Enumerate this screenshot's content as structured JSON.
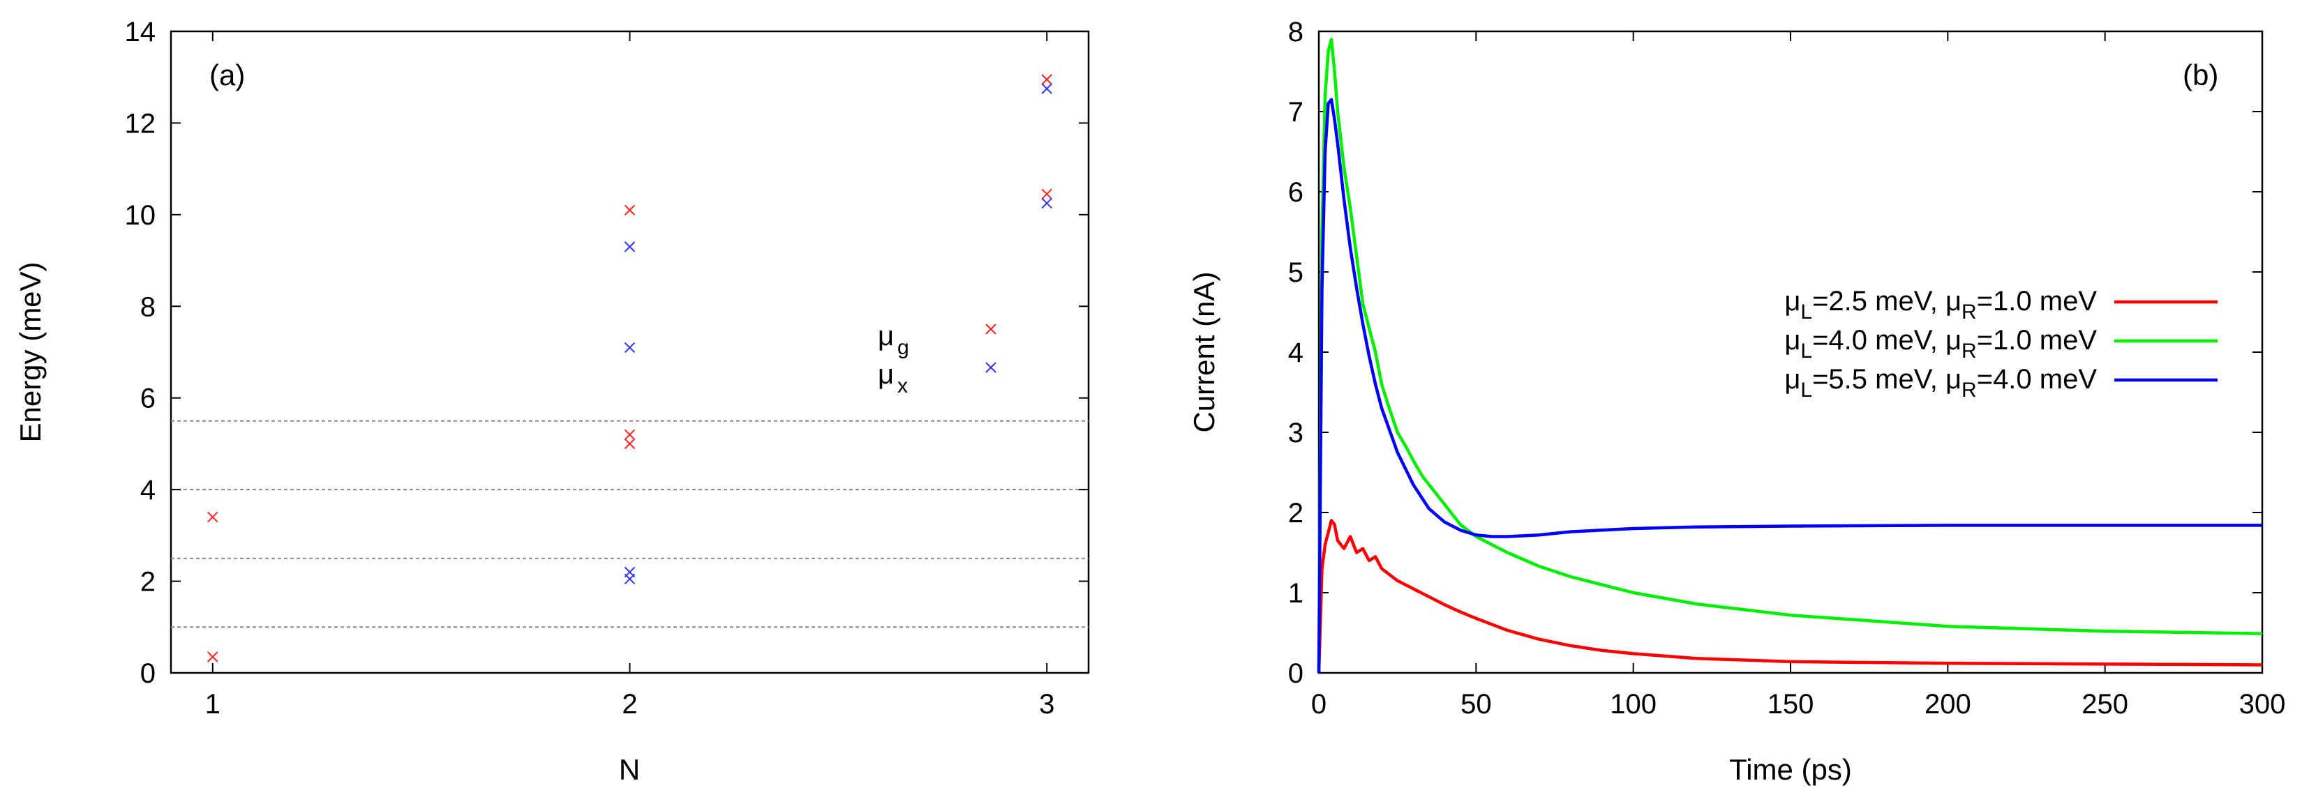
{
  "colors": {
    "red": "#ff0000",
    "green": "#00ee00",
    "blue": "#0000ff",
    "pt_red": "#ff2020",
    "pt_blue": "#3333ff",
    "grid": "#888888"
  },
  "chart_data": [
    {
      "type": "scatter",
      "panel_label": "(a)",
      "xlabel": "N",
      "ylabel": "Energy (meV)",
      "xlim": [
        0.9,
        3.1
      ],
      "ylim": [
        0,
        14
      ],
      "xticks": [
        1,
        2,
        3
      ],
      "yticks": [
        0,
        2,
        4,
        6,
        8,
        10,
        12,
        14
      ],
      "hlines": [
        1.0,
        2.5,
        4.0,
        5.5
      ],
      "legend": {
        "mu_label": "μ",
        "sub_g": "g",
        "sub_x": "x",
        "placement": "right"
      },
      "series": [
        {
          "name": "mu_g",
          "color": "#ff2020",
          "points": [
            {
              "x": 1,
              "y": 3.4
            },
            {
              "x": 1,
              "y": 0.35
            },
            {
              "x": 2,
              "y": 10.1
            },
            {
              "x": 2,
              "y": 5.2
            },
            {
              "x": 2,
              "y": 5.0
            },
            {
              "x": 3,
              "y": 12.95
            },
            {
              "x": 3,
              "y": 10.45
            }
          ]
        },
        {
          "name": "mu_x",
          "color": "#3333ff",
          "points": [
            {
              "x": 2,
              "y": 9.3
            },
            {
              "x": 2,
              "y": 7.1
            },
            {
              "x": 2,
              "y": 2.2
            },
            {
              "x": 2,
              "y": 2.05
            },
            {
              "x": 3,
              "y": 12.75
            },
            {
              "x": 3,
              "y": 10.25
            }
          ]
        }
      ]
    },
    {
      "type": "line",
      "panel_label": "(b)",
      "xlabel": "Time (ps)",
      "ylabel": "Current (nA)",
      "xlim": [
        0,
        300
      ],
      "ylim": [
        0,
        8
      ],
      "xticks": [
        0,
        50,
        100,
        150,
        200,
        250,
        300
      ],
      "yticks": [
        0,
        1,
        2,
        3,
        4,
        5,
        6,
        7,
        8
      ],
      "legend_placement": "right",
      "series": [
        {
          "name": "mu_L=2.5 meV, mu_R=1.0 meV",
          "color": "#ff0000",
          "label_parts": [
            "μ",
            "L",
            "=2.5 meV, μ",
            "R",
            "=1.0 meV"
          ],
          "x": [
            0,
            1,
            2,
            3,
            4,
            5,
            6,
            8,
            10,
            12,
            14,
            16,
            18,
            20,
            25,
            30,
            35,
            40,
            45,
            50,
            60,
            70,
            80,
            90,
            100,
            120,
            150,
            200,
            250,
            300
          ],
          "y": [
            0,
            1.3,
            1.6,
            1.75,
            1.9,
            1.85,
            1.65,
            1.55,
            1.7,
            1.5,
            1.55,
            1.4,
            1.45,
            1.3,
            1.15,
            1.05,
            0.95,
            0.85,
            0.76,
            0.68,
            0.53,
            0.42,
            0.34,
            0.28,
            0.24,
            0.18,
            0.14,
            0.12,
            0.11,
            0.1
          ]
        },
        {
          "name": "mu_L=4.0 meV, mu_R=1.0 meV",
          "color": "#00ee00",
          "label_parts": [
            "μ",
            "L",
            "=4.0 meV, μ",
            "R",
            "=1.0 meV"
          ],
          "x": [
            0,
            0.5,
            1,
            2,
            3,
            4,
            5,
            6,
            8,
            10,
            12,
            14,
            16,
            18,
            20,
            22,
            25,
            28,
            30,
            33,
            35,
            38,
            40,
            45,
            50,
            60,
            70,
            80,
            100,
            120,
            150,
            200,
            250,
            300
          ],
          "y": [
            0,
            3.0,
            5.5,
            7.2,
            7.75,
            7.9,
            7.5,
            7.0,
            6.3,
            5.8,
            5.2,
            4.6,
            4.3,
            4.0,
            3.6,
            3.35,
            3.0,
            2.8,
            2.65,
            2.45,
            2.35,
            2.2,
            2.1,
            1.85,
            1.7,
            1.5,
            1.33,
            1.2,
            1.0,
            0.86,
            0.72,
            0.58,
            0.52,
            0.49
          ]
        },
        {
          "name": "mu_L=5.5 meV, mu_R=4.0 meV",
          "color": "#0000ff",
          "label_parts": [
            "μ",
            "L",
            "=5.5 meV, μ",
            "R",
            "=4.0 meV"
          ],
          "x": [
            0,
            0.5,
            1,
            2,
            3,
            4,
            5,
            6,
            8,
            10,
            12,
            14,
            16,
            18,
            20,
            25,
            30,
            35,
            40,
            45,
            50,
            55,
            60,
            70,
            80,
            100,
            120,
            150,
            200,
            250,
            300
          ],
          "y": [
            0,
            2.5,
            4.8,
            6.5,
            7.1,
            7.15,
            6.9,
            6.6,
            5.9,
            5.3,
            4.8,
            4.35,
            3.95,
            3.6,
            3.3,
            2.75,
            2.35,
            2.05,
            1.88,
            1.78,
            1.72,
            1.7,
            1.7,
            1.72,
            1.76,
            1.8,
            1.82,
            1.83,
            1.84,
            1.84,
            1.84
          ]
        }
      ]
    }
  ]
}
